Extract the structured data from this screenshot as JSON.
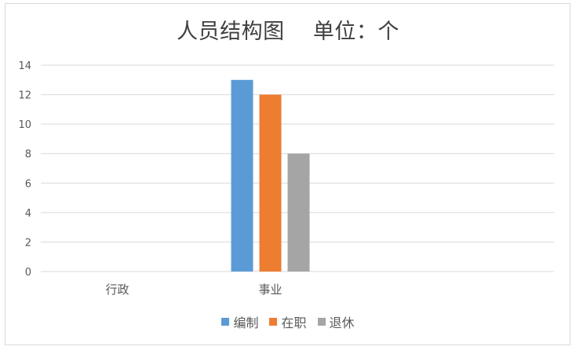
{
  "chart_data": {
    "type": "bar",
    "title": "人员结构图    单位：个",
    "categories": [
      "行政",
      "事业"
    ],
    "series": [
      {
        "name": "编制",
        "color": "#5b9bd5",
        "values": [
          0,
          13
        ]
      },
      {
        "name": "在职",
        "color": "#ed7d31",
        "values": [
          0,
          12
        ]
      },
      {
        "name": "退休",
        "color": "#a5a5a5",
        "values": [
          0,
          8
        ]
      }
    ],
    "y_ticks": [
      "0",
      "2",
      "4",
      "6",
      "8",
      "10",
      "12",
      "14"
    ],
    "ylim": [
      0,
      14
    ],
    "grid": true,
    "legend_position": "bottom"
  }
}
